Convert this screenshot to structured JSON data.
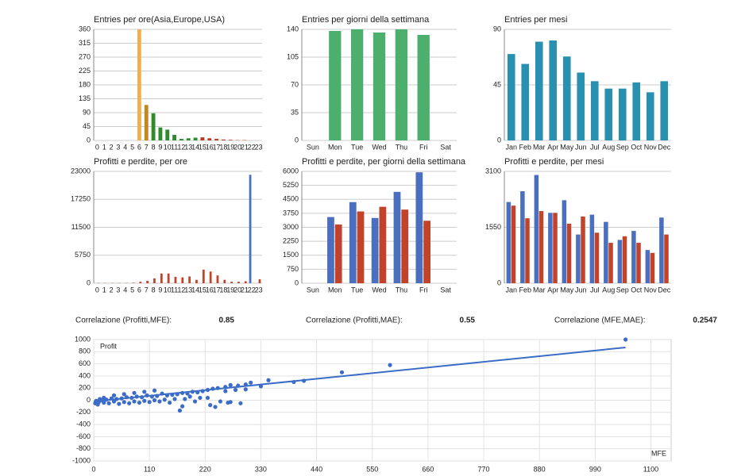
{
  "chart_data": [
    {
      "type": "bar",
      "title": "Entries per ore(Asia,Europe,USA)",
      "categories": [
        "0",
        "1",
        "2",
        "3",
        "4",
        "5",
        "6",
        "7",
        "8",
        "9",
        "10",
        "11",
        "12",
        "13",
        "14",
        "15",
        "16",
        "17",
        "18",
        "19",
        "20",
        "21",
        "22",
        "23"
      ],
      "values": [
        0,
        0,
        0,
        0,
        0,
        0,
        360,
        115,
        88,
        42,
        35,
        18,
        5,
        7,
        9,
        10,
        7,
        5,
        3,
        2,
        1,
        1,
        0,
        0
      ],
      "colors": [
        "#e8a040",
        "#e8a040",
        "#e8a040",
        "#e8a040",
        "#e8a040",
        "#e8a040",
        "#f0b050",
        "#c08820",
        "#2e8b2e",
        "#2e8b2e",
        "#2e8b2e",
        "#2e8b2e",
        "#2e8b2e",
        "#2e8b2e",
        "#2e8b2e",
        "#b83a20",
        "#b83a20",
        "#b83a20",
        "#b83a20",
        "#b83a20",
        "#b83a20",
        "#b83a20",
        "#b83a20",
        "#b83a20"
      ],
      "ylim": [
        0,
        360
      ],
      "yticks": [
        0,
        45,
        90,
        135,
        180,
        225,
        270,
        315,
        360
      ],
      "grid": true
    },
    {
      "type": "bar",
      "title": "Entries per giorni della settimana",
      "categories": [
        "Sun",
        "Mon",
        "Tue",
        "Wed",
        "Thu",
        "Fri",
        "Sat"
      ],
      "values": [
        0,
        138,
        140,
        136,
        140,
        133,
        0
      ],
      "color": "#4caf6e",
      "ylim": [
        0,
        140
      ],
      "yticks": [
        0,
        35,
        70,
        105,
        140
      ],
      "grid": true
    },
    {
      "type": "bar",
      "title": "Entries per mesi",
      "categories": [
        "Jan",
        "Feb",
        "Mar",
        "Apr",
        "May",
        "Jun",
        "Jul",
        "Aug",
        "Sep",
        "Oct",
        "Nov",
        "Dec"
      ],
      "values": [
        70,
        62,
        80,
        81,
        68,
        55,
        48,
        42,
        42,
        47,
        39,
        48
      ],
      "color": "#2a90b0",
      "ylim": [
        0,
        90
      ],
      "yticks": [
        0,
        45,
        90
      ],
      "grid": true
    },
    {
      "type": "bar",
      "title": "Profitti e perdite, per ore",
      "categories": [
        "0",
        "1",
        "2",
        "3",
        "4",
        "5",
        "6",
        "7",
        "8",
        "9",
        "10",
        "11",
        "12",
        "13",
        "14",
        "15",
        "16",
        "17",
        "18",
        "19",
        "20",
        "21",
        "22",
        "23"
      ],
      "series": [
        {
          "color": "#4a6fbf",
          "values": [
            0,
            0,
            0,
            0,
            0,
            0,
            0,
            0,
            0,
            0,
            0,
            0,
            0,
            0,
            0,
            0,
            0,
            0,
            0,
            0,
            0,
            0,
            22300,
            0
          ]
        },
        {
          "color": "#c0432a",
          "values": [
            50,
            50,
            50,
            50,
            50,
            100,
            300,
            500,
            1000,
            2000,
            2000,
            1300,
            1200,
            1400,
            700,
            2800,
            2400,
            1600,
            700,
            300,
            300,
            400,
            0,
            800
          ]
        }
      ],
      "ylim": [
        0,
        23000
      ],
      "yticks": [
        0,
        5750,
        11500,
        17250,
        23000
      ],
      "grid": true
    },
    {
      "type": "bar",
      "title": "Profitti e perdite, per giorni della settimana",
      "categories": [
        "Sun",
        "Mon",
        "Tue",
        "Wed",
        "Thu",
        "Fri",
        "Sat"
      ],
      "series": [
        {
          "color": "#4a6fbf",
          "values": [
            0,
            3550,
            4350,
            3500,
            4900,
            5950,
            0
          ]
        },
        {
          "color": "#c0432a",
          "values": [
            0,
            3150,
            3850,
            4100,
            3950,
            3350,
            0
          ]
        }
      ],
      "ylim": [
        0,
        6000
      ],
      "yticks": [
        0,
        750,
        1500,
        2250,
        3000,
        3750,
        4500,
        5250,
        6000
      ],
      "grid": true
    },
    {
      "type": "bar",
      "title": "Profitti e perdite, per mesi",
      "categories": [
        "Jan",
        "Feb",
        "Mar",
        "Apr",
        "May",
        "Jun",
        "Jul",
        "Aug",
        "Sep",
        "Oct",
        "Nov",
        "Dec"
      ],
      "series": [
        {
          "color": "#4a6fbf",
          "values": [
            2250,
            2550,
            3000,
            1950,
            2300,
            1350,
            1900,
            1700,
            1200,
            1450,
            920,
            1820
          ]
        },
        {
          "color": "#c0432a",
          "values": [
            2150,
            1800,
            2000,
            1950,
            1650,
            1850,
            1400,
            1120,
            1300,
            1120,
            840,
            1350
          ]
        }
      ],
      "ylim": [
        0,
        3100
      ],
      "yticks": [
        0,
        1550,
        3100
      ],
      "grid": true
    },
    {
      "type": "scatter",
      "ylabel": "Profit",
      "xlabel": "MFE",
      "color": "#3b6cc8",
      "x": [
        1050,
        585,
        490,
        415,
        395,
        345,
        330,
        310,
        300,
        285,
        270,
        260,
        245,
        235,
        225,
        215,
        205,
        195,
        185,
        175,
        165,
        155,
        145,
        135,
        125,
        115,
        105,
        95,
        85,
        75,
        65,
        55,
        45,
        35,
        25,
        15,
        5,
        10,
        20,
        30,
        40,
        50,
        60,
        70,
        80,
        90,
        100,
        110,
        120,
        130,
        140,
        150,
        160,
        170,
        175,
        200,
        210,
        230,
        240,
        250,
        265,
        290,
        300,
        280,
        260,
        190,
        180,
        60,
        80,
        100,
        120,
        40,
        20,
        3,
        8,
        12,
        270,
        225
      ],
      "values": [
        1000,
        580,
        460,
        320,
        300,
        330,
        230,
        290,
        260,
        240,
        250,
        220,
        200,
        190,
        170,
        150,
        130,
        140,
        110,
        120,
        100,
        90,
        80,
        110,
        70,
        60,
        80,
        50,
        60,
        40,
        50,
        30,
        20,
        30,
        10,
        0,
        -10,
        -30,
        -40,
        -50,
        -20,
        -60,
        -30,
        -50,
        -20,
        -40,
        -10,
        -30,
        0,
        -20,
        10,
        -40,
        20,
        -170,
        -100,
        -20,
        40,
        -80,
        -110,
        -20,
        -40,
        -50,
        180,
        170,
        150,
        60,
        20,
        100,
        120,
        140,
        160,
        80,
        40,
        -50,
        -70,
        20,
        -30,
        40
      ],
      "trend": {
        "x": [
          0,
          1050
        ],
        "values": [
          -20,
          870
        ]
      },
      "xlim": [
        0,
        1140
      ],
      "xticks": [
        0,
        110,
        220,
        330,
        440,
        550,
        660,
        770,
        880,
        990,
        1100
      ],
      "ylim": [
        -1000,
        1000
      ],
      "yticks": [
        -1000,
        -800,
        -600,
        -400,
        -200,
        0,
        200,
        400,
        600,
        800,
        1000
      ],
      "grid": true
    }
  ],
  "correlations": [
    {
      "label": "Correlazione (Profitti,MFE):",
      "value": 0.85
    },
    {
      "label": "Correlazione (Profitti,MAE):",
      "value": 0.55
    },
    {
      "label": "Correlazione (MFE,MAE):",
      "value": 0.2547
    }
  ]
}
